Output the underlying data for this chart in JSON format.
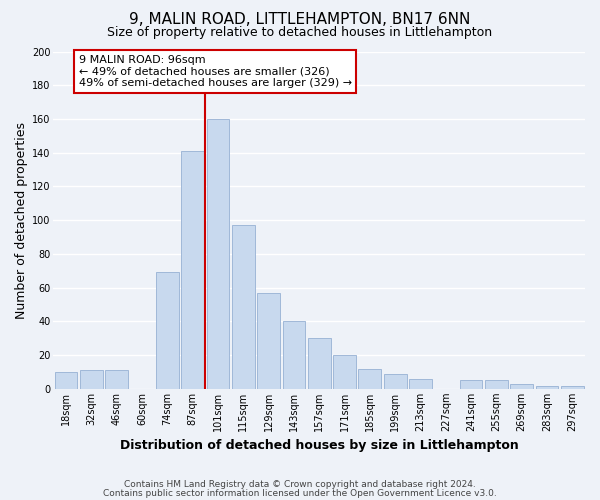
{
  "title": "9, MALIN ROAD, LITTLEHAMPTON, BN17 6NN",
  "subtitle": "Size of property relative to detached houses in Littlehampton",
  "xlabel": "Distribution of detached houses by size in Littlehampton",
  "ylabel": "Number of detached properties",
  "bar_labels": [
    "18sqm",
    "32sqm",
    "46sqm",
    "60sqm",
    "74sqm",
    "87sqm",
    "101sqm",
    "115sqm",
    "129sqm",
    "143sqm",
    "157sqm",
    "171sqm",
    "185sqm",
    "199sqm",
    "213sqm",
    "227sqm",
    "241sqm",
    "255sqm",
    "269sqm",
    "283sqm",
    "297sqm"
  ],
  "bar_values": [
    10,
    11,
    11,
    0,
    69,
    141,
    160,
    97,
    57,
    40,
    30,
    20,
    12,
    9,
    6,
    0,
    5,
    5,
    3,
    2,
    2
  ],
  "bar_color": "#c8d9ee",
  "bar_edge_color": "#a0b8d8",
  "vline_position": 5.5,
  "vline_color": "#cc0000",
  "annotation_text": "9 MALIN ROAD: 96sqm\n← 49% of detached houses are smaller (326)\n49% of semi-detached houses are larger (329) →",
  "annotation_box_color": "#ffffff",
  "annotation_box_edge": "#cc0000",
  "ylim": [
    0,
    200
  ],
  "yticks": [
    0,
    20,
    40,
    60,
    80,
    100,
    120,
    140,
    160,
    180,
    200
  ],
  "footer_line1": "Contains HM Land Registry data © Crown copyright and database right 2024.",
  "footer_line2": "Contains public sector information licensed under the Open Government Licence v3.0.",
  "background_color": "#eef2f8",
  "grid_color": "#ffffff",
  "title_fontsize": 11,
  "subtitle_fontsize": 9,
  "axis_label_fontsize": 9,
  "tick_fontsize": 7,
  "footer_fontsize": 6.5,
  "annot_fontsize": 8
}
